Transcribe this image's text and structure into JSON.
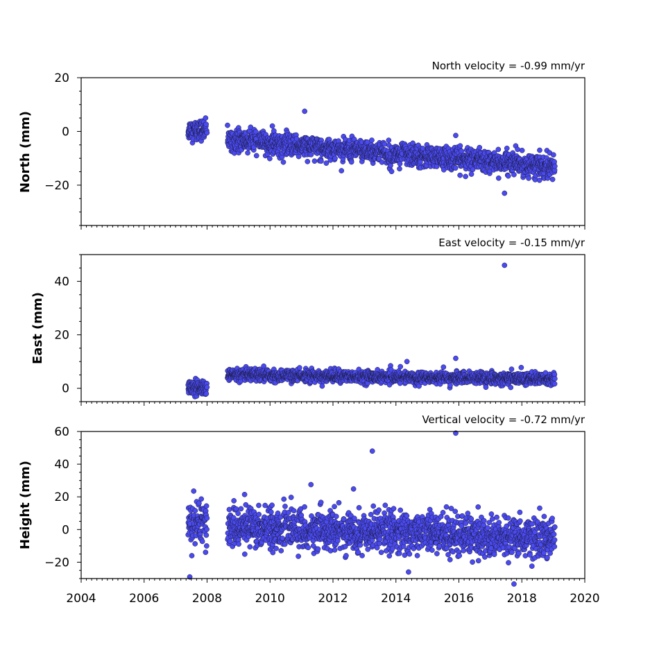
{
  "colors": {
    "marker_fill": "#4a4af0",
    "marker_edge": "#1a1a3a"
  },
  "chart_data": [
    {
      "type": "scatter",
      "annotation": "North velocity = -0.99 mm/yr",
      "ylabel": "North (mm)",
      "xlim": [
        2004,
        2020
      ],
      "ylim": [
        -35,
        20
      ],
      "yticks": [
        -20,
        0,
        20
      ],
      "ytick_labels": [
        "−20",
        "0",
        "20"
      ],
      "segments": [
        {
          "start": 2007.4,
          "end": 2008.0,
          "mean": 0.5,
          "trend": 0.0,
          "sd": 1.8
        },
        {
          "start": 2008.65,
          "end": 2019.05,
          "mean": -3.0,
          "trend": -0.99,
          "sd": 2.0
        }
      ],
      "outliers": [
        {
          "x": 2011.1,
          "y": 7.5
        },
        {
          "x": 2017.45,
          "y": -23.0
        },
        {
          "x": 2015.9,
          "y": -1.5
        }
      ]
    },
    {
      "type": "scatter",
      "annotation": "East velocity = -0.15 mm/yr",
      "ylabel": "East (mm)",
      "xlim": [
        2004,
        2020
      ],
      "ylim": [
        -5,
        50
      ],
      "yticks": [
        0,
        20,
        40
      ],
      "ytick_labels": [
        "0",
        "20",
        "40"
      ],
      "segments": [
        {
          "start": 2007.4,
          "end": 2008.0,
          "mean": 0.0,
          "trend": 0.0,
          "sd": 1.4
        },
        {
          "start": 2008.65,
          "end": 2019.05,
          "mean": 5.0,
          "trend": -0.15,
          "sd": 1.1
        }
      ],
      "outliers": [
        {
          "x": 2017.45,
          "y": 46.0
        },
        {
          "x": 2015.9,
          "y": 11.2
        },
        {
          "x": 2014.35,
          "y": 10.0
        }
      ]
    },
    {
      "type": "scatter",
      "annotation": "Vertical velocity = -0.72 mm/yr",
      "ylabel": "Height (mm)",
      "xlabel": "",
      "xlim": [
        2004,
        2020
      ],
      "ylim": [
        -30,
        60
      ],
      "yticks": [
        -20,
        0,
        20,
        40,
        60
      ],
      "ytick_labels": [
        "−20",
        "0",
        "20",
        "40",
        "60"
      ],
      "xticks": [
        2004,
        2006,
        2008,
        2010,
        2012,
        2014,
        2016,
        2018,
        2020
      ],
      "xtick_labels": [
        "2004",
        "2006",
        "2008",
        "2010",
        "2012",
        "2014",
        "2016",
        "2018",
        "2020"
      ],
      "segments": [
        {
          "start": 2007.4,
          "end": 2008.0,
          "mean": 4.0,
          "trend": 0.0,
          "sd": 7.0
        },
        {
          "start": 2008.65,
          "end": 2019.05,
          "mean": 2.0,
          "trend": -0.72,
          "sd": 6.0
        }
      ],
      "outliers": [
        {
          "x": 2013.25,
          "y": 48.0
        },
        {
          "x": 2015.9,
          "y": 59.0
        },
        {
          "x": 2007.45,
          "y": -29.0
        },
        {
          "x": 2014.4,
          "y": -26.0
        },
        {
          "x": 2011.3,
          "y": 27.5
        }
      ]
    }
  ]
}
